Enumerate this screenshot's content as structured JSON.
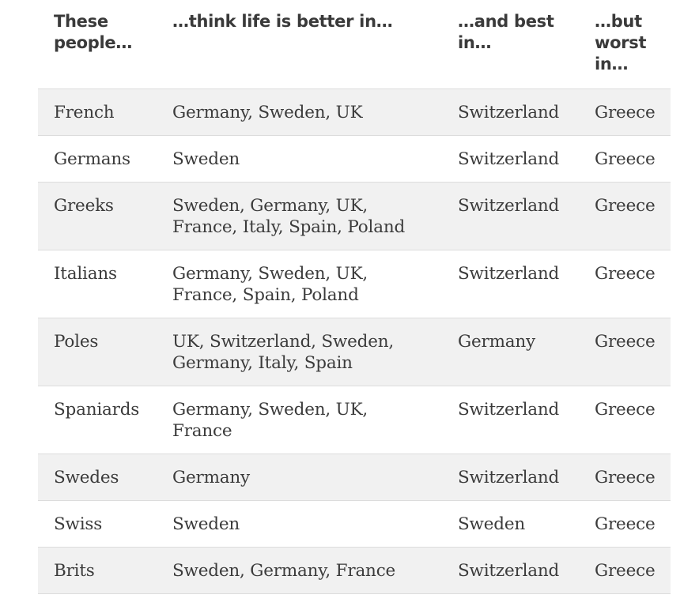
{
  "table": {
    "headers": [
      "These people…",
      "…think life is better in…",
      "…and best in…",
      "…but worst in…"
    ],
    "rows": [
      [
        "French",
        "Germany, Sweden, UK",
        "Switzerland",
        "Greece"
      ],
      [
        "Germans",
        "Sweden",
        "Switzerland",
        "Greece"
      ],
      [
        "Greeks",
        "Sweden, Germany, UK, France, Italy, Spain, Poland",
        "Switzerland",
        "Greece"
      ],
      [
        "Italians",
        "Germany, Sweden, UK, France, Spain, Poland",
        "Switzerland",
        "Greece"
      ],
      [
        "Poles",
        "UK, Switzerland, Sweden, Germany, Italy, Spain",
        "Germany",
        "Greece"
      ],
      [
        "Spaniards",
        "Germany, Sweden, UK, France",
        "Switzerland",
        "Greece"
      ],
      [
        "Swedes",
        "Germany",
        "Switzerland",
        "Greece"
      ],
      [
        "Swiss",
        "Sweden",
        "Sweden",
        "Greece"
      ],
      [
        "Brits",
        "Sweden, Germany, France",
        "Switzerland",
        "Greece"
      ]
    ]
  }
}
